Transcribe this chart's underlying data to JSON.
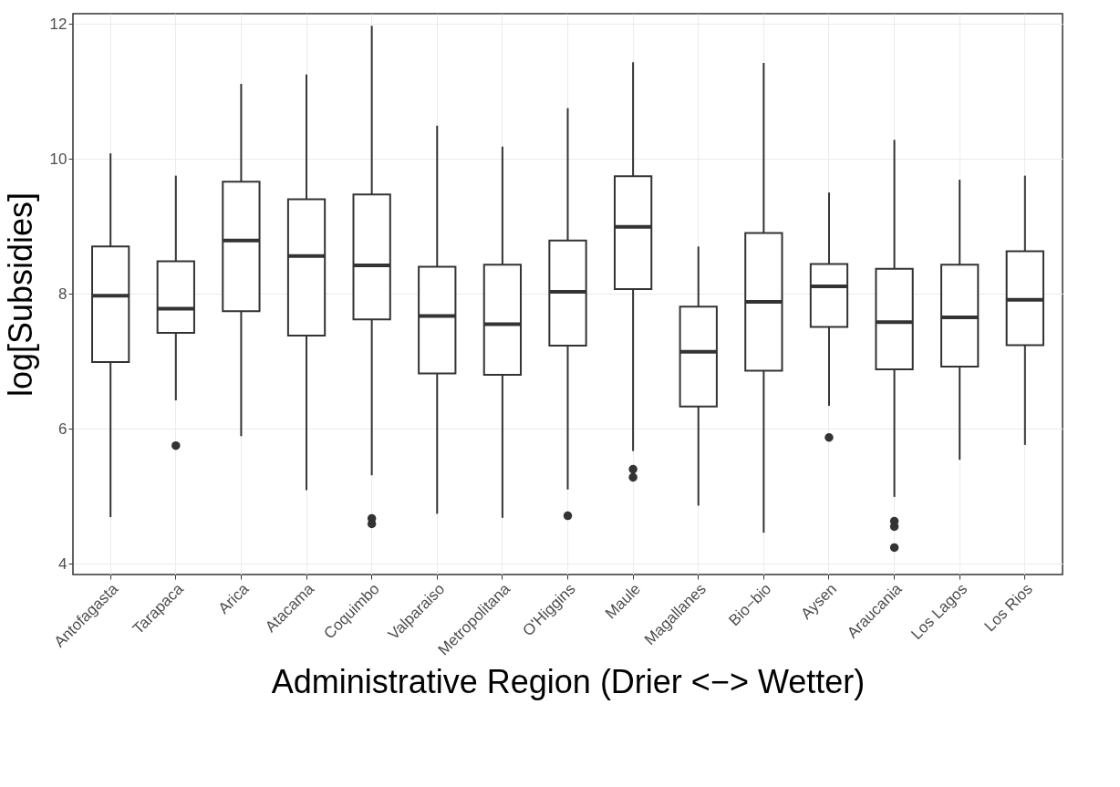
{
  "chart_data": {
    "type": "box",
    "xlabel": "Administrative Region (Drier <−> Wetter)",
    "ylabel": "log[Subsidies]",
    "categories": [
      "Antofagasta",
      "Tarapaca",
      "Arica",
      "Atacama",
      "Coquimbo",
      "Valparaiso",
      "Metropolitana",
      "O'Higgins",
      "Maule",
      "Magallanes",
      "Bio−bio",
      "Aysen",
      "Araucania",
      "Los Lagos",
      "Los Rios"
    ],
    "ylim": [
      3.84,
      12.15
    ],
    "yticks": [
      4,
      6,
      8,
      10,
      12
    ],
    "grid": true,
    "color": "#333333",
    "boxes": [
      {
        "low": 4.69,
        "q1": 6.99,
        "median": 7.97,
        "q3": 8.7,
        "high": 10.08
      },
      {
        "low": 6.42,
        "q1": 7.42,
        "median": 7.78,
        "q3": 8.48,
        "high": 9.75,
        "outliers": [
          5.75
        ]
      },
      {
        "low": 5.89,
        "q1": 7.74,
        "median": 8.79,
        "q3": 9.66,
        "high": 11.11
      },
      {
        "low": 5.09,
        "q1": 7.38,
        "median": 8.56,
        "q3": 9.4,
        "high": 11.25
      },
      {
        "low": 5.31,
        "q1": 7.62,
        "median": 8.42,
        "q3": 9.47,
        "high": 11.97,
        "outliers": [
          4.67,
          4.59
        ]
      },
      {
        "low": 4.74,
        "q1": 6.82,
        "median": 7.67,
        "q3": 8.4,
        "high": 10.49
      },
      {
        "low": 4.68,
        "q1": 6.8,
        "median": 7.55,
        "q3": 8.43,
        "high": 10.18
      },
      {
        "low": 5.1,
        "q1": 7.23,
        "median": 8.03,
        "q3": 8.79,
        "high": 10.75,
        "outliers": [
          4.71
        ]
      },
      {
        "low": 5.67,
        "q1": 8.07,
        "median": 8.99,
        "q3": 9.74,
        "high": 11.43,
        "outliers": [
          5.4,
          5.28
        ]
      },
      {
        "low": 4.86,
        "q1": 6.33,
        "median": 7.14,
        "q3": 7.81,
        "high": 8.7
      },
      {
        "low": 4.46,
        "q1": 6.86,
        "median": 7.88,
        "q3": 8.9,
        "high": 11.42
      },
      {
        "low": 6.34,
        "q1": 7.51,
        "median": 8.11,
        "q3": 8.44,
        "high": 9.5,
        "outliers": [
          5.87
        ]
      },
      {
        "low": 4.99,
        "q1": 6.88,
        "median": 7.58,
        "q3": 8.37,
        "high": 10.28,
        "outliers": [
          4.63,
          4.55,
          4.24
        ]
      },
      {
        "low": 5.54,
        "q1": 6.92,
        "median": 7.65,
        "q3": 8.43,
        "high": 9.69
      },
      {
        "low": 5.76,
        "q1": 7.24,
        "median": 7.91,
        "q3": 8.63,
        "high": 9.75
      }
    ]
  }
}
